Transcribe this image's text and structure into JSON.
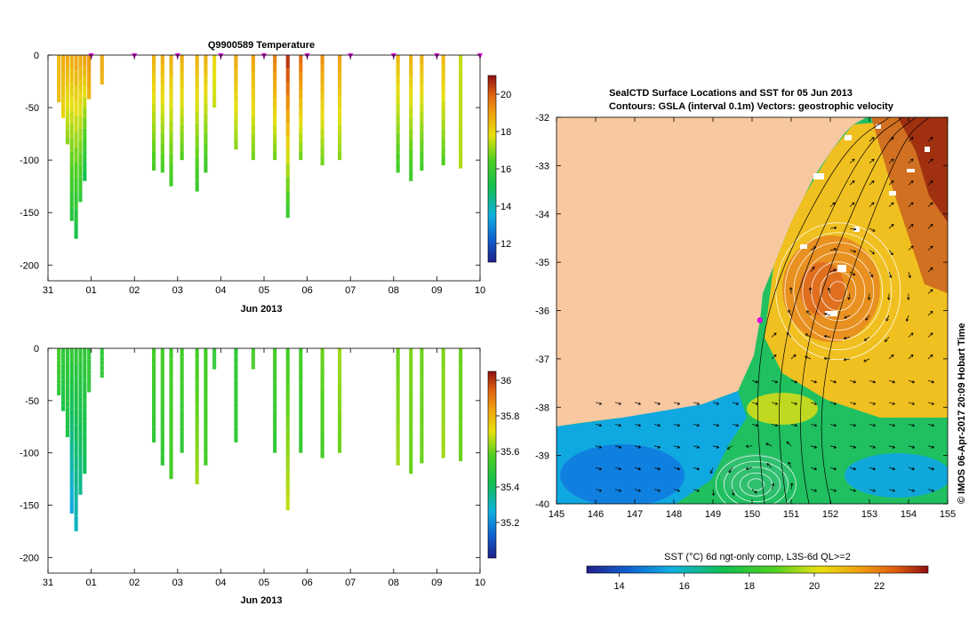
{
  "chart_data": [
    {
      "type": "heatmap",
      "title": "Q9900589  Temperature",
      "xlabel": "Jun 2013",
      "ylabel": "",
      "x_tick_labels": [
        "31",
        "01",
        "02",
        "03",
        "04",
        "05",
        "06",
        "07",
        "08",
        "09",
        "10"
      ],
      "xlim": [
        0,
        10
      ],
      "ylim": [
        -215,
        0
      ],
      "y_ticks": [
        0,
        -50,
        -100,
        -150,
        -200
      ],
      "colorbar_range": [
        11,
        21
      ],
      "colorbar_ticks": [
        12,
        14,
        16,
        18,
        20
      ],
      "profile_markers_x": [
        1,
        2,
        3,
        4,
        5,
        6,
        7,
        8,
        9,
        10
      ],
      "profiles": [
        {
          "x": 0.25,
          "depth": 45,
          "surface": 18.5,
          "bottom": 18.5
        },
        {
          "x": 0.35,
          "depth": 60,
          "surface": 18.8,
          "bottom": 18.0
        },
        {
          "x": 0.45,
          "depth": 85,
          "surface": 18.8,
          "bottom": 17.0
        },
        {
          "x": 0.55,
          "depth": 158,
          "surface": 18.7,
          "bottom": 15.5
        },
        {
          "x": 0.65,
          "depth": 175,
          "surface": 18.8,
          "bottom": 15.2
        },
        {
          "x": 0.75,
          "depth": 140,
          "surface": 18.8,
          "bottom": 15.8
        },
        {
          "x": 0.85,
          "depth": 120,
          "surface": 18.9,
          "bottom": 15.0
        },
        {
          "x": 0.95,
          "depth": 42,
          "surface": 19.2,
          "bottom": 18.7
        },
        {
          "x": 1.25,
          "depth": 28,
          "surface": 18.8,
          "bottom": 18.7
        },
        {
          "x": 2.45,
          "depth": 110,
          "surface": 18.6,
          "bottom": 16.3
        },
        {
          "x": 2.65,
          "depth": 112,
          "surface": 18.7,
          "bottom": 16.3
        },
        {
          "x": 2.85,
          "depth": 125,
          "surface": 18.6,
          "bottom": 16.2
        },
        {
          "x": 3.1,
          "depth": 100,
          "surface": 18.7,
          "bottom": 16.5
        },
        {
          "x": 3.45,
          "depth": 130,
          "surface": 18.6,
          "bottom": 16.0
        },
        {
          "x": 3.65,
          "depth": 112,
          "surface": 18.6,
          "bottom": 16.1
        },
        {
          "x": 3.85,
          "depth": 50,
          "surface": 18.0,
          "bottom": 17.5
        },
        {
          "x": 4.35,
          "depth": 90,
          "surface": 18.8,
          "bottom": 17.0
        },
        {
          "x": 4.75,
          "depth": 100,
          "surface": 18.9,
          "bottom": 16.8
        },
        {
          "x": 5.25,
          "depth": 100,
          "surface": 19.5,
          "bottom": 16.8
        },
        {
          "x": 5.55,
          "depth": 155,
          "surface": 20.5,
          "bottom": 16.0
        },
        {
          "x": 5.85,
          "depth": 100,
          "surface": 19.8,
          "bottom": 16.8
        },
        {
          "x": 6.35,
          "depth": 105,
          "surface": 19.2,
          "bottom": 16.8
        },
        {
          "x": 6.75,
          "depth": 100,
          "surface": 18.9,
          "bottom": 17.0
        },
        {
          "x": 8.1,
          "depth": 112,
          "surface": 18.5,
          "bottom": 16.2
        },
        {
          "x": 8.4,
          "depth": 120,
          "surface": 18.6,
          "bottom": 16.1
        },
        {
          "x": 8.65,
          "depth": 110,
          "surface": 18.6,
          "bottom": 16.2
        },
        {
          "x": 9.15,
          "depth": 105,
          "surface": 18.5,
          "bottom": 16.5
        },
        {
          "x": 9.55,
          "depth": 108,
          "surface": 17.5,
          "bottom": 17.3
        }
      ]
    },
    {
      "type": "heatmap",
      "title": "",
      "xlabel": "Jun 2013",
      "ylabel": "",
      "x_tick_labels": [
        "31",
        "01",
        "02",
        "03",
        "04",
        "05",
        "06",
        "07",
        "08",
        "09",
        "10"
      ],
      "xlim": [
        0,
        10
      ],
      "ylim": [
        -215,
        0
      ],
      "y_ticks": [
        0,
        -50,
        -100,
        -150,
        -200
      ],
      "colorbar_range": [
        35.0,
        36.05
      ],
      "colorbar_ticks": [
        "35.2",
        "35.4",
        "35.6",
        "35.8",
        "36"
      ],
      "profiles": [
        {
          "x": 0.25,
          "depth": 45,
          "surface": 35.55,
          "bottom": 35.5
        },
        {
          "x": 0.35,
          "depth": 60,
          "surface": 35.5,
          "bottom": 35.45
        },
        {
          "x": 0.45,
          "depth": 85,
          "surface": 35.5,
          "bottom": 35.45
        },
        {
          "x": 0.55,
          "depth": 158,
          "surface": 35.5,
          "bottom": 35.25
        },
        {
          "x": 0.65,
          "depth": 175,
          "surface": 35.5,
          "bottom": 35.3
        },
        {
          "x": 0.75,
          "depth": 140,
          "surface": 35.5,
          "bottom": 35.35
        },
        {
          "x": 0.85,
          "depth": 120,
          "surface": 35.5,
          "bottom": 35.4
        },
        {
          "x": 0.95,
          "depth": 42,
          "surface": 35.5,
          "bottom": 35.5
        },
        {
          "x": 1.25,
          "depth": 28,
          "surface": 35.5,
          "bottom": 35.5
        },
        {
          "x": 2.45,
          "depth": 90,
          "surface": 35.55,
          "bottom": 35.5
        },
        {
          "x": 2.65,
          "depth": 112,
          "surface": 35.55,
          "bottom": 35.5
        },
        {
          "x": 2.85,
          "depth": 125,
          "surface": 35.55,
          "bottom": 35.55
        },
        {
          "x": 3.1,
          "depth": 100,
          "surface": 35.55,
          "bottom": 35.5
        },
        {
          "x": 3.45,
          "depth": 130,
          "surface": 35.55,
          "bottom": 35.65
        },
        {
          "x": 3.65,
          "depth": 112,
          "surface": 35.55,
          "bottom": 35.55
        },
        {
          "x": 3.85,
          "depth": 20,
          "surface": 35.5,
          "bottom": 35.5
        },
        {
          "x": 4.35,
          "depth": 90,
          "surface": 35.5,
          "bottom": 35.5
        },
        {
          "x": 4.75,
          "depth": 20,
          "surface": 35.55,
          "bottom": 35.55
        },
        {
          "x": 5.25,
          "depth": 100,
          "surface": 35.55,
          "bottom": 35.5
        },
        {
          "x": 5.55,
          "depth": 155,
          "surface": 35.55,
          "bottom": 35.68
        },
        {
          "x": 5.85,
          "depth": 100,
          "surface": 35.55,
          "bottom": 35.52
        },
        {
          "x": 6.35,
          "depth": 105,
          "surface": 35.6,
          "bottom": 35.55
        },
        {
          "x": 6.75,
          "depth": 100,
          "surface": 35.65,
          "bottom": 35.6
        },
        {
          "x": 8.1,
          "depth": 112,
          "surface": 35.6,
          "bottom": 35.65
        },
        {
          "x": 8.4,
          "depth": 120,
          "surface": 35.62,
          "bottom": 35.6
        },
        {
          "x": 8.65,
          "depth": 110,
          "surface": 35.6,
          "bottom": 35.6
        },
        {
          "x": 9.15,
          "depth": 105,
          "surface": 35.62,
          "bottom": 35.65
        },
        {
          "x": 9.55,
          "depth": 108,
          "surface": 35.6,
          "bottom": 35.6
        }
      ]
    },
    {
      "type": "heatmap",
      "title": "SealCTD Surface Locations and SST for 05 Jun 2013",
      "subtitle": "Contours: GSLA (interval 0.1m) Vectors: geostrophic velocity",
      "xlabel": "",
      "ylabel": "",
      "xlim": [
        145,
        155
      ],
      "ylim": [
        -40,
        -32
      ],
      "x_ticks": [
        145,
        146,
        147,
        148,
        149,
        150,
        151,
        152,
        153,
        154,
        155
      ],
      "y_ticks": [
        -32,
        -33,
        -34,
        -35,
        -36,
        -37,
        -38,
        -39,
        -40
      ],
      "sst_range": [
        13,
        23.5
      ],
      "colorbar_label": "SST (°C) 6d ngt-only comp, L3S-6d QL>=2",
      "colorbar_ticks": [
        14,
        16,
        18,
        20,
        22
      ],
      "seal_location": {
        "lon": 150.2,
        "lat": -36.2
      },
      "eddies": [
        {
          "name": "warm-core",
          "lon": 152.2,
          "lat": -35.6
        },
        {
          "name": "cold-core",
          "lon": 150.1,
          "lat": -39.6
        }
      ],
      "credit": "© IMOS 06-Apr-2017 20:09 Hobart Time"
    }
  ],
  "colors": {
    "seal_marker": "#e000e0",
    "land": "#f8c8a0",
    "axis": "#000000"
  }
}
